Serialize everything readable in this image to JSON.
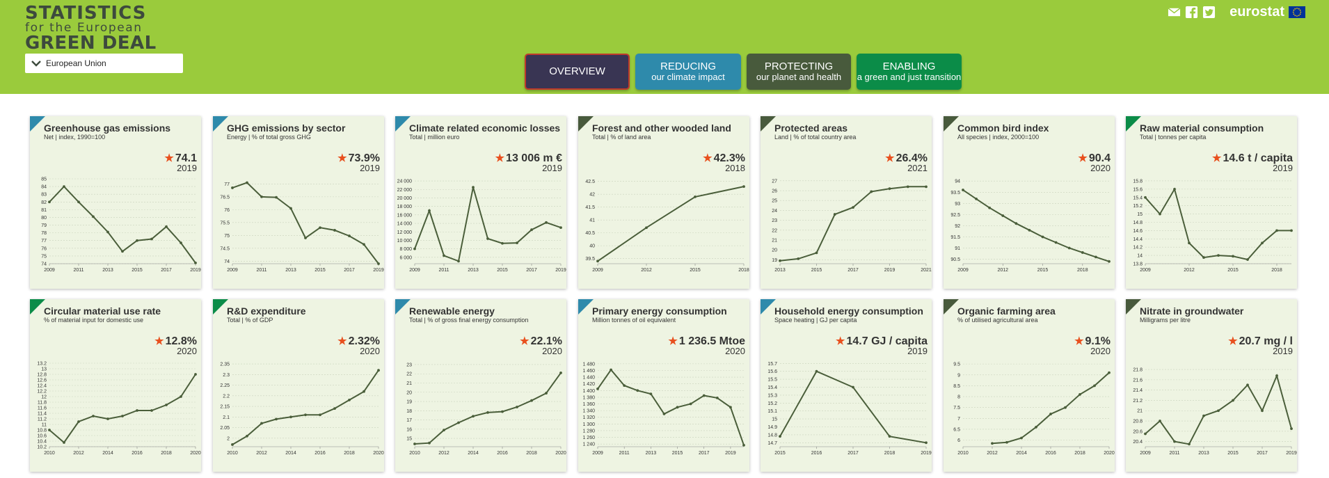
{
  "header": {
    "logo_line1": "STATISTICS",
    "logo_line2": "for the European",
    "logo_line3": "GREEN DEAL",
    "country": "European Union",
    "brand": "eurostat",
    "tabs": [
      {
        "main": "OVERVIEW",
        "sub": ""
      },
      {
        "main": "REDUCING",
        "sub": "our climate impact"
      },
      {
        "main": "PROTECTING",
        "sub": "our planet and health"
      },
      {
        "main": "ENABLING",
        "sub": "a green and just transition"
      }
    ],
    "icons": [
      "email-icon",
      "facebook-icon",
      "twitter-icon",
      "eu-flag-icon"
    ]
  },
  "colors": {
    "header_bg": "#9acb3c",
    "card_bg": "#eef4e2",
    "line": "#4a5e3a",
    "star": "#e8501e",
    "reducing": "#2e8aab",
    "protecting": "#485a3c",
    "enabling": "#0b8c48",
    "overview": "#393553"
  },
  "chart_data": [
    {
      "type": "line",
      "category": "reducing",
      "title": "Greenhouse gas emissions",
      "subtitle": "Net | index, 1990=100",
      "value": "74.1",
      "year": "2019",
      "x": [
        2009,
        2010,
        2011,
        2012,
        2013,
        2014,
        2015,
        2016,
        2017,
        2018,
        2019
      ],
      "y": [
        82,
        84,
        82,
        80.1,
        78.1,
        75.6,
        77,
        77.2,
        78.8,
        76.7,
        74.1
      ],
      "ylim": [
        74,
        85
      ],
      "yticks": [
        "74",
        "75",
        "76",
        "77",
        "78",
        "79",
        "80",
        "81",
        "82",
        "83",
        "84",
        "85"
      ],
      "xticks": [
        "2009",
        "2011",
        "2013",
        "2015",
        "2017",
        "2019"
      ]
    },
    {
      "type": "line",
      "category": "reducing",
      "title": "GHG emissions by sector",
      "subtitle": "Energy | % of total gross GHG",
      "value": "73.9%",
      "year": "2019",
      "x": [
        2009,
        2010,
        2011,
        2012,
        2013,
        2014,
        2015,
        2016,
        2017,
        2018,
        2019
      ],
      "y": [
        76.85,
        77.05,
        76.5,
        76.48,
        76.05,
        74.9,
        75.3,
        75.2,
        74.98,
        74.65,
        73.9
      ],
      "ylim": [
        73.9,
        77.2
      ],
      "yticks": [
        "74",
        "74.5",
        "75",
        "75.5",
        "76",
        "76.5",
        "77"
      ],
      "xticks": [
        "2009",
        "2011",
        "2013",
        "2015",
        "2017",
        "2019"
      ]
    },
    {
      "type": "line",
      "category": "reducing",
      "title": "Climate related economic losses",
      "subtitle": "Total | million euro",
      "value": "13 006 m €",
      "year": "2019",
      "x": [
        2009,
        2010,
        2011,
        2012,
        2013,
        2014,
        2015,
        2016,
        2017,
        2018,
        2019
      ],
      "y": [
        8000,
        17000,
        6400,
        5100,
        22500,
        10400,
        9300,
        9400,
        12500,
        14200,
        13006
      ],
      "ylim": [
        4500,
        24500
      ],
      "yticks": [
        "6 000",
        "8 000",
        "10 000",
        "12 000",
        "14 000",
        "16 000",
        "18 000",
        "20 000",
        "22 000",
        "24 000"
      ],
      "xticks": [
        "2009",
        "2011",
        "2013",
        "2015",
        "2017",
        "2019"
      ]
    },
    {
      "type": "line",
      "category": "protecting",
      "title": "Forest and other wooded land",
      "subtitle": "Total | % of land area",
      "value": "42.3%",
      "year": "2018",
      "x": [
        2009,
        2012,
        2015,
        2018
      ],
      "y": [
        39.4,
        40.7,
        41.9,
        42.3
      ],
      "ylim": [
        39.3,
        42.6
      ],
      "yticks": [
        "39.5",
        "40",
        "40.5",
        "41",
        "41.5",
        "42",
        "42.5"
      ],
      "xticks": [
        "2009",
        "2012",
        "2015",
        "2018"
      ]
    },
    {
      "type": "line",
      "category": "protecting",
      "title": "Protected areas",
      "subtitle": "Land | % of total country area",
      "value": "26.4%",
      "year": "2021",
      "x": [
        2013,
        2014,
        2015,
        2016,
        2017,
        2018,
        2019,
        2020,
        2021
      ],
      "y": [
        18.9,
        19.1,
        19.7,
        23.6,
        24.3,
        25.9,
        26.2,
        26.4,
        26.4
      ],
      "ylim": [
        18.6,
        27.2
      ],
      "yticks": [
        "19",
        "20",
        "21",
        "22",
        "23",
        "24",
        "25",
        "26",
        "27"
      ],
      "xticks": [
        "2013",
        "2015",
        "2017",
        "2019",
        "2021"
      ]
    },
    {
      "type": "line",
      "category": "protecting",
      "title": "Common bird index",
      "subtitle": "All species | index, 2000=100",
      "value": "90.4",
      "year": "2020",
      "x": [
        2009,
        2010,
        2011,
        2012,
        2013,
        2014,
        2015,
        2016,
        2017,
        2018,
        2019,
        2020
      ],
      "y": [
        93.6,
        93.2,
        92.8,
        92.45,
        92.1,
        91.8,
        91.5,
        91.25,
        91.0,
        90.8,
        90.6,
        90.4
      ],
      "ylim": [
        90.3,
        94.1
      ],
      "yticks": [
        "90.5",
        "91",
        "91.5",
        "92",
        "92.5",
        "93",
        "93.5",
        "94"
      ],
      "xticks": [
        "2009",
        "2012",
        "2015",
        "2018"
      ]
    },
    {
      "type": "line",
      "category": "enabling",
      "title": "Raw material consumption",
      "subtitle": "Total | tonnes per capita",
      "value": "14.6 t / capita",
      "year": "2019",
      "x": [
        2009,
        2010,
        2011,
        2012,
        2013,
        2014,
        2015,
        2016,
        2017,
        2018,
        2019
      ],
      "y": [
        15.4,
        15.0,
        15.6,
        14.3,
        13.95,
        14.0,
        13.98,
        13.9,
        14.3,
        14.6,
        14.6
      ],
      "ylim": [
        13.8,
        15.85
      ],
      "yticks": [
        "13.8",
        "14",
        "14.2",
        "14.4",
        "14.6",
        "14.8",
        "15",
        "15.2",
        "15.4",
        "15.6",
        "15.8"
      ],
      "xticks": [
        "2009",
        "2012",
        "2015",
        "2018"
      ]
    },
    {
      "type": "line",
      "category": "enabling",
      "title": "Circular material use rate",
      "subtitle": "% of material input for domestic use",
      "value": "12.8%",
      "year": "2020",
      "x": [
        2010,
        2011,
        2012,
        2013,
        2014,
        2015,
        2016,
        2017,
        2018,
        2019,
        2020
      ],
      "y": [
        10.8,
        10.35,
        11.1,
        11.3,
        11.2,
        11.3,
        11.5,
        11.5,
        11.7,
        12.0,
        12.8
      ],
      "ylim": [
        10.2,
        13.25
      ],
      "yticks": [
        "10.2",
        "10.4",
        "10.6",
        "10.8",
        "11",
        "11.2",
        "11.4",
        "11.6",
        "11.8",
        "12",
        "12.2",
        "12.4",
        "12.6",
        "12.8",
        "13",
        "13.2"
      ],
      "xticks": [
        "2010",
        "2012",
        "2014",
        "2016",
        "2018",
        "2020"
      ]
    },
    {
      "type": "line",
      "category": "enabling",
      "title": "R&D expenditure",
      "subtitle": "Total | % of GDP",
      "value": "2.32%",
      "year": "2020",
      "x": [
        2010,
        2011,
        2012,
        2013,
        2014,
        2015,
        2016,
        2017,
        2018,
        2019,
        2020
      ],
      "y": [
        1.97,
        2.01,
        2.07,
        2.09,
        2.1,
        2.11,
        2.11,
        2.14,
        2.18,
        2.22,
        2.32
      ],
      "ylim": [
        1.96,
        2.36
      ],
      "yticks": [
        "2",
        "2.05",
        "2.1",
        "2.15",
        "2.2",
        "2.25",
        "2.3",
        "2.35"
      ],
      "xticks": [
        "2010",
        "2012",
        "2014",
        "2016",
        "2018",
        "2020"
      ]
    },
    {
      "type": "line",
      "category": "reducing",
      "title": "Renewable energy",
      "subtitle": "Total | % of gross final energy consumption",
      "value": "22.1%",
      "year": "2020",
      "x": [
        2010,
        2011,
        2012,
        2013,
        2014,
        2015,
        2016,
        2017,
        2018,
        2019,
        2020
      ],
      "y": [
        14.4,
        14.5,
        15.9,
        16.7,
        17.4,
        17.8,
        17.9,
        18.4,
        19.1,
        19.9,
        22.1
      ],
      "ylim": [
        14.1,
        23.3
      ],
      "yticks": [
        "15",
        "16",
        "17",
        "18",
        "19",
        "20",
        "21",
        "22",
        "23"
      ],
      "xticks": [
        "2010",
        "2012",
        "2014",
        "2016",
        "2018",
        "2020"
      ]
    },
    {
      "type": "line",
      "category": "reducing",
      "title": "Primary energy consumption",
      "subtitle": "Million tonnes of oil equivalent",
      "value": "1 236.5 Mtoe",
      "year": "2020",
      "x": [
        2009,
        2010,
        2011,
        2012,
        2013,
        2014,
        2015,
        2016,
        2017,
        2018,
        2019,
        2020
      ],
      "y": [
        1405,
        1462,
        1415,
        1400,
        1390,
        1330,
        1350,
        1360,
        1385,
        1378,
        1350,
        1236.5
      ],
      "ylim": [
        1232,
        1486
      ],
      "yticks": [
        "1 240",
        "1 260",
        "1 280",
        "1 300",
        "1 320",
        "1 340",
        "1 360",
        "1 380",
        "1 400",
        "1 420",
        "1 440",
        "1 460",
        "1 480"
      ],
      "xticks": [
        "2009",
        "2011",
        "2013",
        "2015",
        "2017",
        "2019"
      ]
    },
    {
      "type": "line",
      "category": "reducing",
      "title": "Household energy consumption",
      "subtitle": "Space heating | GJ per capita",
      "value": "14.7 GJ / capita",
      "year": "2019",
      "x": [
        2015,
        2016,
        2017,
        2018,
        2019
      ],
      "y": [
        14.78,
        15.6,
        15.4,
        14.78,
        14.7
      ],
      "ylim": [
        14.65,
        15.72
      ],
      "yticks": [
        "14.7",
        "14.8",
        "14.9",
        "15",
        "15.1",
        "15.2",
        "15.3",
        "15.4",
        "15.5",
        "15.6",
        "15.7"
      ],
      "xticks": [
        "2015",
        "2016",
        "2017",
        "2018",
        "2019"
      ]
    },
    {
      "type": "line",
      "category": "protecting",
      "title": "Organic farming area",
      "subtitle": "% of utilised agricultural area",
      "value": "9.1%",
      "year": "2020",
      "x": [
        2012,
        2013,
        2014,
        2015,
        2016,
        2017,
        2018,
        2019,
        2020
      ],
      "y": [
        5.85,
        5.9,
        6.1,
        6.6,
        7.2,
        7.5,
        8.1,
        8.5,
        9.1
      ],
      "ylim": [
        5.7,
        9.6
      ],
      "yticks": [
        "6",
        "6.5",
        "7",
        "7.5",
        "8",
        "8.5",
        "9",
        "9.5"
      ],
      "xticks": [
        "2010",
        "2012",
        "2014",
        "2016",
        "2018",
        "2020"
      ],
      "xlim": [
        2010,
        2020
      ]
    },
    {
      "type": "line",
      "category": "protecting",
      "title": "Nitrate in groundwater",
      "subtitle": "Milligrams per litre",
      "value": "20.7 mg / l",
      "year": "2019",
      "x": [
        2009,
        2010,
        2011,
        2012,
        2013,
        2014,
        2015,
        2016,
        2017,
        2018,
        2019
      ],
      "y": [
        20.55,
        20.8,
        20.4,
        20.35,
        20.9,
        21.0,
        21.2,
        21.5,
        21.0,
        21.68,
        20.65
      ],
      "ylim": [
        20.3,
        21.95
      ],
      "yticks": [
        "20.4",
        "20.6",
        "20.8",
        "21",
        "21.2",
        "21.4",
        "21.6",
        "21.8"
      ],
      "xticks": [
        "2009",
        "2011",
        "2013",
        "2015",
        "2017",
        "2019"
      ]
    }
  ]
}
